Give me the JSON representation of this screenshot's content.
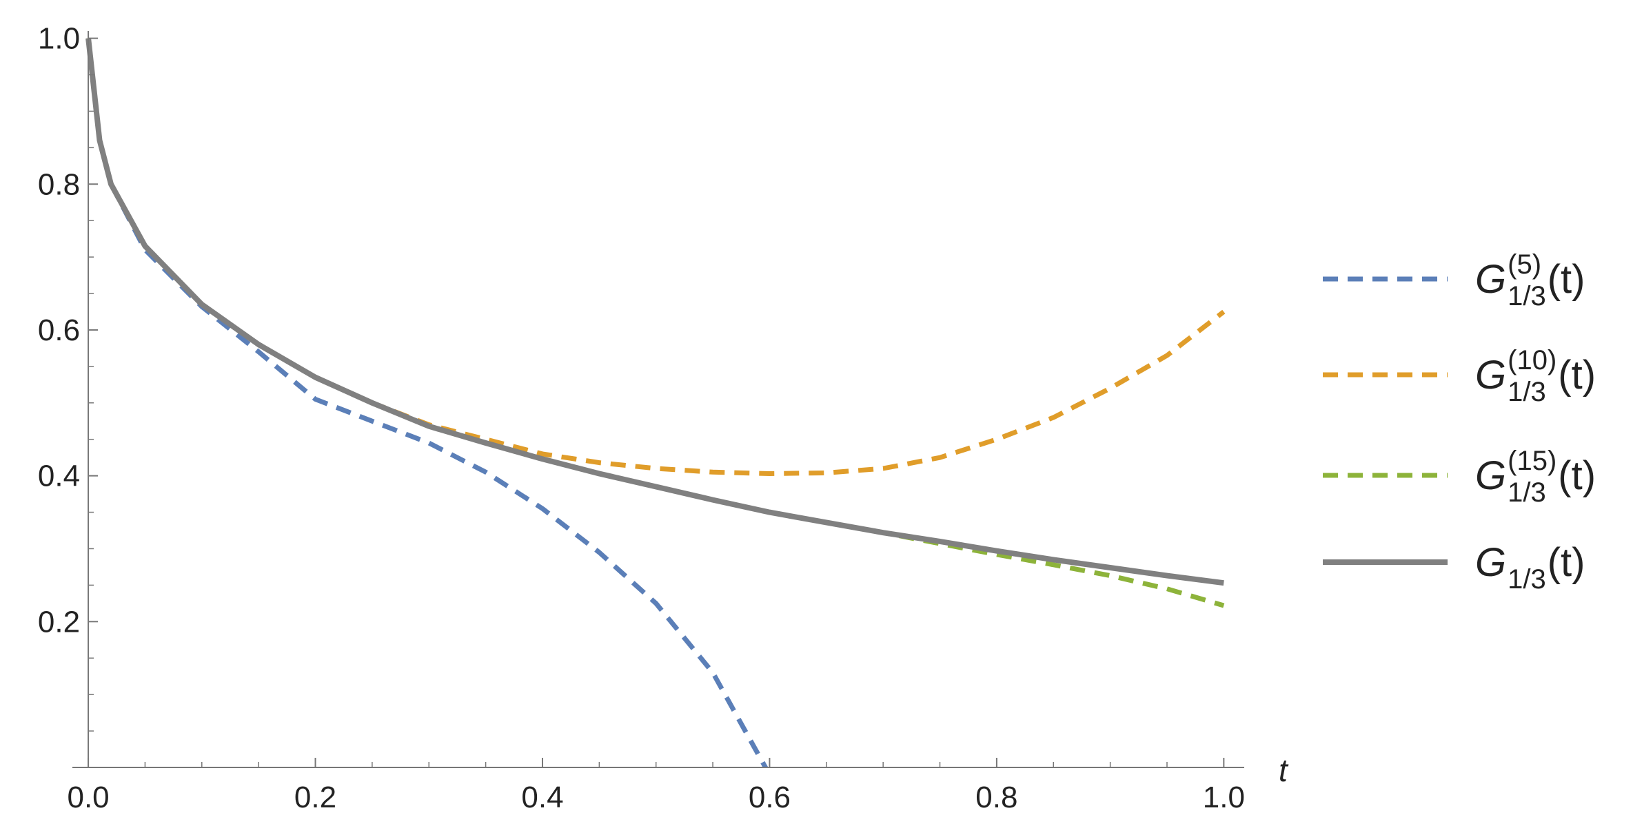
{
  "chart_data": {
    "type": "line",
    "x_label": "t",
    "x": [
      0,
      0.01,
      0.02,
      0.05,
      0.1,
      0.15,
      0.2,
      0.25,
      0.3,
      0.35,
      0.4,
      0.45,
      0.5,
      0.55,
      0.6,
      0.65,
      0.7,
      0.75,
      0.8,
      0.85,
      0.9,
      0.95,
      1.0
    ],
    "series": [
      {
        "name": "G",
        "superscript": "(5)",
        "subscript": "1/3",
        "argument": "(t)",
        "color": "#5b7fb8",
        "dashed": true,
        "values": [
          1.0,
          0.86,
          0.8,
          0.71,
          0.632,
          0.57,
          0.505,
          0.475,
          0.445,
          0.405,
          0.355,
          0.295,
          0.225,
          0.13,
          -0.01,
          null,
          null,
          null,
          null,
          null,
          null,
          null,
          null
        ]
      },
      {
        "name": "G",
        "superscript": "(10)",
        "subscript": "1/3",
        "argument": "(t)",
        "color": "#e09d2a",
        "dashed": true,
        "values": [
          1.0,
          0.86,
          0.8,
          0.715,
          0.635,
          0.58,
          0.535,
          0.5,
          0.47,
          0.45,
          0.43,
          0.418,
          0.41,
          0.405,
          0.403,
          0.404,
          0.41,
          0.425,
          0.45,
          0.48,
          0.52,
          0.565,
          0.625
        ]
      },
      {
        "name": "G",
        "superscript": "(15)",
        "subscript": "1/3",
        "argument": "(t)",
        "color": "#8db33a",
        "dashed": true,
        "values": [
          1.0,
          0.86,
          0.8,
          0.715,
          0.635,
          0.58,
          0.535,
          0.5,
          0.468,
          0.445,
          0.423,
          0.403,
          0.385,
          0.367,
          0.35,
          0.336,
          0.322,
          0.307,
          0.292,
          0.278,
          0.263,
          0.245,
          0.222
        ]
      },
      {
        "name": "G",
        "subscript": "1/3",
        "argument": "(t)",
        "color": "#808080",
        "dashed": false,
        "values": [
          1.0,
          0.86,
          0.8,
          0.715,
          0.635,
          0.58,
          0.535,
          0.5,
          0.468,
          0.445,
          0.423,
          0.403,
          0.385,
          0.367,
          0.35,
          0.336,
          0.322,
          0.31,
          0.297,
          0.285,
          0.274,
          0.263,
          0.253
        ]
      }
    ],
    "xlim": [
      -0.014,
      1.018
    ],
    "ylim": [
      0,
      1.01
    ],
    "xticks": [
      {
        "value": 0,
        "label": "0.0"
      },
      0.2,
      0.4,
      0.6,
      0.8,
      {
        "value": 1,
        "label": "1.0"
      }
    ],
    "yticks": [
      0.2,
      0.4,
      0.6,
      0.8,
      {
        "value": 1,
        "label": "1.0"
      }
    ],
    "xminorticks": [
      0.05,
      0.1,
      0.15,
      0.25,
      0.3,
      0.35,
      0.45,
      0.5,
      0.55,
      0.65,
      0.7,
      0.75,
      0.85,
      0.9,
      0.95
    ],
    "yminorticks": [
      0.05,
      0.1,
      0.15,
      0.25,
      0.3,
      0.35,
      0.45,
      0.5,
      0.55,
      0.65,
      0.7,
      0.75,
      0.85,
      0.9,
      0.95
    ],
    "legend": "right"
  }
}
